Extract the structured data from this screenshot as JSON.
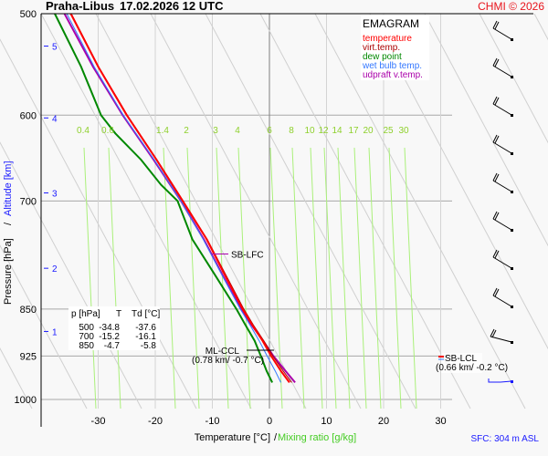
{
  "header": {
    "station": "Praha-Libus",
    "datetime": "17.02.2026 12 UTC",
    "copyright": "CHMI © 2026"
  },
  "chart_data": {
    "type": "line",
    "title": "EMAGRAM",
    "xlabel": "Temperature [°C]",
    "xlabel_separator": "/",
    "xlabel2": "Mixing ratio [g/kg]",
    "ylabel": "Pressure [hPa]",
    "ylabel_separator": "/",
    "ylabel2": "Altitude [km]",
    "xlim": [
      -40,
      35
    ],
    "ylim": [
      1000,
      500
    ],
    "x_ticks": [
      -30,
      -20,
      -10,
      0,
      10,
      20,
      30
    ],
    "y_ticks": [
      500,
      600,
      700,
      850,
      925,
      1000
    ],
    "altitude_ticks": [
      1,
      2,
      3,
      4,
      5
    ],
    "altitude_tick_pressures": [
      885,
      790,
      690,
      603,
      530
    ],
    "mixing_ratio_labels": [
      "0.4",
      "0.6",
      "1.4",
      "2",
      "3",
      "4",
      "6",
      "8",
      "10",
      "12",
      "14",
      "17",
      "20",
      "25",
      "30"
    ],
    "legend": [
      {
        "name": "temperature",
        "color": "#ff0000"
      },
      {
        "name": "virt.temp.",
        "color": "#aa0000"
      },
      {
        "name": "dew point",
        "color": "#008800"
      },
      {
        "name": "wet bulb temp.",
        "color": "#3377ff"
      },
      {
        "name": "udpraft v.temp.",
        "color": "#aa00aa"
      }
    ],
    "series": [
      {
        "name": "temperature",
        "p": [
          970,
          950,
          925,
          900,
          875,
          850,
          800,
          750,
          700,
          650,
          600,
          550,
          500
        ],
        "t": [
          3.5,
          2.0,
          0.3,
          -1.2,
          -3.0,
          -4.7,
          -7.8,
          -11.0,
          -15.2,
          -19.8,
          -25.0,
          -30.0,
          -34.8
        ]
      },
      {
        "name": "virt.temp.",
        "p": [
          970,
          950,
          925,
          900,
          875,
          850,
          800,
          750,
          700,
          650,
          600,
          550,
          500
        ],
        "t": [
          3.9,
          2.4,
          0.6,
          -1.0,
          -2.8,
          -4.5,
          -7.6,
          -10.9,
          -15.1,
          -19.7,
          -24.9,
          -29.9,
          -34.7
        ]
      },
      {
        "name": "dew point",
        "p": [
          970,
          960,
          950,
          925,
          900,
          875,
          850,
          800,
          750,
          700,
          680,
          650,
          620,
          600,
          550,
          500
        ],
        "t": [
          0.5,
          0.0,
          -0.5,
          -1.5,
          -2.6,
          -4.2,
          -5.8,
          -9.5,
          -13.5,
          -16.1,
          -19.0,
          -22.5,
          -27.0,
          -29.5,
          -33.0,
          -37.6
        ]
      },
      {
        "name": "wet bulb temp.",
        "p": [
          970,
          950,
          925,
          900,
          875,
          850,
          800,
          750,
          700,
          650,
          600,
          550,
          500
        ],
        "t": [
          2.0,
          1.0,
          -0.4,
          -1.8,
          -3.4,
          -5.1,
          -8.3,
          -11.6,
          -15.5,
          -20.2,
          -25.6,
          -30.7,
          -35.5
        ]
      },
      {
        "name": "udpraft v.temp.",
        "p": [
          970,
          950,
          925,
          900,
          875,
          850,
          800,
          750,
          700,
          650,
          600,
          550,
          500
        ],
        "t": [
          4.5,
          2.8,
          0.7,
          -1.1,
          -3.1,
          -5.0,
          -8.2,
          -11.5,
          -15.5,
          -20.3,
          -25.7,
          -30.9,
          -35.9
        ]
      }
    ],
    "table": {
      "headers": [
        "p [hPa]",
        "T",
        "Td [°C]"
      ],
      "rows": [
        [
          "500",
          "-34.8",
          "-37.6"
        ],
        [
          "700",
          "-15.2",
          "-16.1"
        ],
        [
          "850",
          "-4.7",
          "-5.8"
        ]
      ]
    },
    "annotations": {
      "sb_lfc": {
        "label": "SB-LFC",
        "p": 770
      },
      "ml_ccl": {
        "label": "ML-CCL",
        "detail": "(0.78 km/ -0.7 °C)",
        "p": 915
      },
      "sb_lcl": {
        "label": "SB-LCL",
        "detail": "(0.66 km/ -0.2 °C)",
        "p": 928
      }
    },
    "wind_barbs_pressures": [
      520,
      570,
      620,
      670,
      720,
      770,
      820,
      870,
      930,
      975
    ],
    "surface": "SFC: 304 m ASL"
  }
}
